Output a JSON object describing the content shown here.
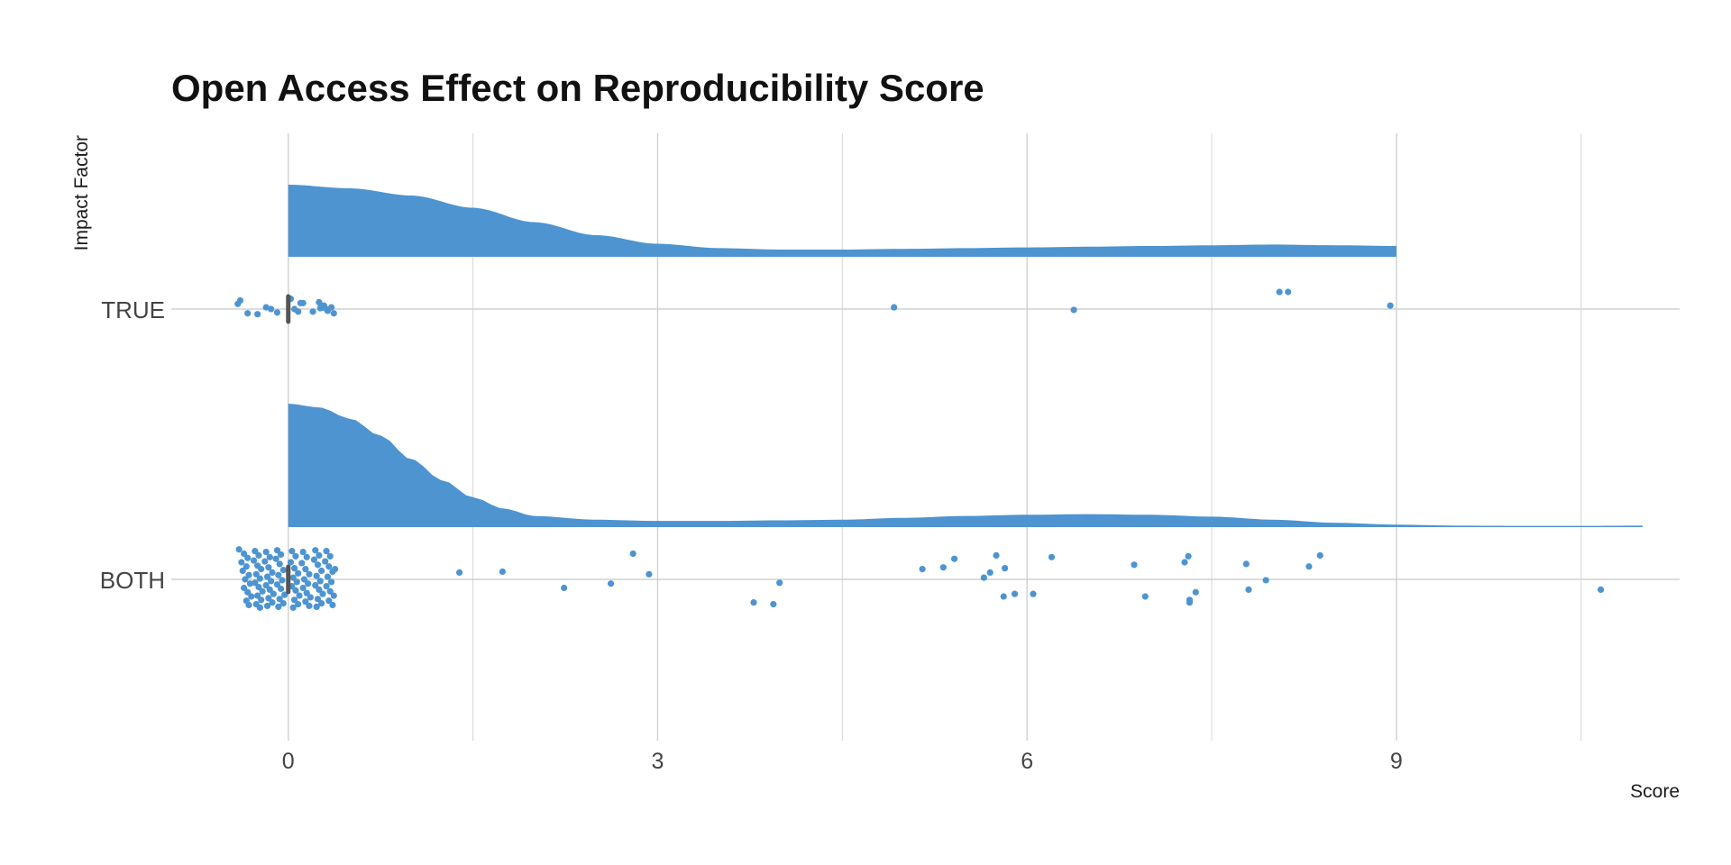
{
  "chart_data": {
    "type": "raincloud",
    "title": "Open Access Effect on Reproducibility Score",
    "xlabel": "Score",
    "ylabel": "Impact Factor",
    "xlim": [
      -0.95,
      11.3
    ],
    "x_ticks": [
      0,
      3,
      6,
      9
    ],
    "x_minor_ticks": [
      1.5,
      4.5,
      7.5,
      10.5
    ],
    "grid": true,
    "color": "#4d94d1",
    "median_color": "#555555",
    "categories": [
      "TRUE",
      "BOTH"
    ],
    "series": [
      {
        "category": "TRUE",
        "median": 0,
        "density_range": [
          0,
          9
        ],
        "density": [
          [
            0,
            1.0
          ],
          [
            0.5,
            0.95
          ],
          [
            1,
            0.85
          ],
          [
            1.5,
            0.68
          ],
          [
            2,
            0.48
          ],
          [
            2.5,
            0.3
          ],
          [
            3,
            0.18
          ],
          [
            3.5,
            0.12
          ],
          [
            4,
            0.1
          ],
          [
            4.5,
            0.1
          ],
          [
            5,
            0.11
          ],
          [
            5.5,
            0.12
          ],
          [
            6,
            0.13
          ],
          [
            6.5,
            0.14
          ],
          [
            7,
            0.15
          ],
          [
            7.5,
            0.16
          ],
          [
            8,
            0.17
          ],
          [
            8.5,
            0.16
          ],
          [
            9,
            0.15
          ]
        ],
        "points": [
          [
            -0.39,
            0.1
          ],
          [
            -0.41,
            0.06
          ],
          [
            -0.33,
            -0.05
          ],
          [
            -0.25,
            -0.06
          ],
          [
            -0.18,
            0.02
          ],
          [
            -0.14,
            0.0
          ],
          [
            -0.09,
            -0.04
          ],
          [
            0.02,
            0.12
          ],
          [
            0.05,
            0.0
          ],
          [
            0.08,
            -0.03
          ],
          [
            0.1,
            0.07
          ],
          [
            0.12,
            0.07
          ],
          [
            0.2,
            -0.03
          ],
          [
            0.26,
            0.01
          ],
          [
            0.27,
            0.04
          ],
          [
            0.29,
            0.04
          ],
          [
            0.3,
            0.01
          ],
          [
            0.32,
            -0.02
          ],
          [
            0.35,
            0.02
          ],
          [
            0.37,
            -0.05
          ],
          [
            0.25,
            0.08
          ],
          [
            4.92,
            0.02
          ],
          [
            6.38,
            -0.01
          ],
          [
            8.05,
            0.2
          ],
          [
            8.12,
            0.2
          ],
          [
            8.95,
            0.04
          ]
        ]
      },
      {
        "category": "BOTH",
        "median": 0,
        "density_range": [
          0,
          11
        ],
        "density": [
          [
            0,
            1.0
          ],
          [
            0.25,
            0.97
          ],
          [
            0.5,
            0.88
          ],
          [
            0.75,
            0.74
          ],
          [
            1,
            0.55
          ],
          [
            1.25,
            0.38
          ],
          [
            1.5,
            0.24
          ],
          [
            1.75,
            0.15
          ],
          [
            2,
            0.09
          ],
          [
            2.5,
            0.06
          ],
          [
            3,
            0.05
          ],
          [
            3.5,
            0.05
          ],
          [
            4,
            0.055
          ],
          [
            4.5,
            0.06
          ],
          [
            5,
            0.075
          ],
          [
            5.5,
            0.09
          ],
          [
            6,
            0.1
          ],
          [
            6.5,
            0.105
          ],
          [
            7,
            0.1
          ],
          [
            7.5,
            0.085
          ],
          [
            8,
            0.06
          ],
          [
            8.5,
            0.035
          ],
          [
            9,
            0.02
          ],
          [
            9.5,
            0.012
          ],
          [
            10,
            0.01
          ],
          [
            10.5,
            0.01
          ],
          [
            11,
            0.012
          ]
        ],
        "points": [
          [
            -0.4,
            0.35
          ],
          [
            -0.36,
            0.3
          ],
          [
            -0.33,
            0.25
          ],
          [
            -0.38,
            0.2
          ],
          [
            -0.34,
            0.15
          ],
          [
            -0.37,
            0.1
          ],
          [
            -0.32,
            0.05
          ],
          [
            -0.35,
            0.0
          ],
          [
            -0.31,
            -0.05
          ],
          [
            -0.36,
            -0.1
          ],
          [
            -0.33,
            -0.15
          ],
          [
            -0.3,
            -0.2
          ],
          [
            -0.34,
            -0.25
          ],
          [
            -0.32,
            -0.3
          ],
          [
            -0.27,
            0.33
          ],
          [
            -0.24,
            0.28
          ],
          [
            -0.28,
            0.22
          ],
          [
            -0.25,
            0.16
          ],
          [
            -0.22,
            0.12
          ],
          [
            -0.26,
            0.06
          ],
          [
            -0.23,
            0.01
          ],
          [
            -0.27,
            -0.04
          ],
          [
            -0.24,
            -0.09
          ],
          [
            -0.21,
            -0.14
          ],
          [
            -0.25,
            -0.19
          ],
          [
            -0.22,
            -0.24
          ],
          [
            -0.26,
            -0.29
          ],
          [
            -0.23,
            -0.33
          ],
          [
            -0.18,
            0.32
          ],
          [
            -0.15,
            0.26
          ],
          [
            -0.19,
            0.21
          ],
          [
            -0.16,
            0.14
          ],
          [
            -0.13,
            0.08
          ],
          [
            -0.17,
            0.03
          ],
          [
            -0.14,
            -0.02
          ],
          [
            -0.18,
            -0.07
          ],
          [
            -0.15,
            -0.12
          ],
          [
            -0.12,
            -0.17
          ],
          [
            -0.16,
            -0.22
          ],
          [
            -0.13,
            -0.27
          ],
          [
            -0.17,
            -0.31
          ],
          [
            -0.09,
            0.34
          ],
          [
            -0.06,
            0.29
          ],
          [
            -0.1,
            0.24
          ],
          [
            -0.07,
            0.18
          ],
          [
            -0.04,
            0.11
          ],
          [
            -0.08,
            0.05
          ],
          [
            -0.05,
            -0.01
          ],
          [
            -0.09,
            -0.06
          ],
          [
            -0.06,
            -0.11
          ],
          [
            -0.03,
            -0.18
          ],
          [
            -0.07,
            -0.23
          ],
          [
            -0.04,
            -0.28
          ],
          [
            -0.08,
            -0.32
          ],
          [
            0.03,
            0.33
          ],
          [
            0.06,
            0.27
          ],
          [
            0.02,
            0.2
          ],
          [
            0.05,
            0.13
          ],
          [
            0.08,
            0.07
          ],
          [
            0.04,
            0.02
          ],
          [
            0.07,
            -0.03
          ],
          [
            0.03,
            -0.08
          ],
          [
            0.06,
            -0.13
          ],
          [
            0.09,
            -0.19
          ],
          [
            0.05,
            -0.24
          ],
          [
            0.08,
            -0.29
          ],
          [
            0.04,
            -0.33
          ],
          [
            0.12,
            0.32
          ],
          [
            0.15,
            0.26
          ],
          [
            0.11,
            0.19
          ],
          [
            0.14,
            0.12
          ],
          [
            0.17,
            0.06
          ],
          [
            0.13,
            0.0
          ],
          [
            0.16,
            -0.05
          ],
          [
            0.12,
            -0.1
          ],
          [
            0.15,
            -0.16
          ],
          [
            0.18,
            -0.21
          ],
          [
            0.14,
            -0.26
          ],
          [
            0.17,
            -0.31
          ],
          [
            0.22,
            0.34
          ],
          [
            0.25,
            0.28
          ],
          [
            0.21,
            0.23
          ],
          [
            0.24,
            0.17
          ],
          [
            0.27,
            0.1
          ],
          [
            0.23,
            0.04
          ],
          [
            0.26,
            -0.02
          ],
          [
            0.22,
            -0.07
          ],
          [
            0.25,
            -0.12
          ],
          [
            0.28,
            -0.17
          ],
          [
            0.24,
            -0.23
          ],
          [
            0.27,
            -0.28
          ],
          [
            0.23,
            -0.32
          ],
          [
            0.31,
            0.33
          ],
          [
            0.34,
            0.27
          ],
          [
            0.3,
            0.21
          ],
          [
            0.33,
            0.15
          ],
          [
            0.36,
            0.09
          ],
          [
            0.32,
            0.03
          ],
          [
            0.35,
            -0.03
          ],
          [
            0.31,
            -0.08
          ],
          [
            0.34,
            -0.14
          ],
          [
            0.37,
            -0.19
          ],
          [
            0.33,
            -0.25
          ],
          [
            0.36,
            -0.3
          ],
          [
            0.38,
            0.12
          ],
          [
            1.39,
            0.08
          ],
          [
            1.74,
            0.09
          ],
          [
            2.24,
            -0.1
          ],
          [
            2.62,
            -0.05
          ],
          [
            2.8,
            0.3
          ],
          [
            2.93,
            0.06
          ],
          [
            3.78,
            -0.27
          ],
          [
            3.94,
            -0.29
          ],
          [
            3.99,
            -0.04
          ],
          [
            5.15,
            0.12
          ],
          [
            5.32,
            0.14
          ],
          [
            5.41,
            0.24
          ],
          [
            5.65,
            0.02
          ],
          [
            5.7,
            0.08
          ],
          [
            5.75,
            0.28
          ],
          [
            5.81,
            -0.2
          ],
          [
            5.82,
            0.13
          ],
          [
            5.9,
            -0.17
          ],
          [
            6.05,
            -0.17
          ],
          [
            6.2,
            0.26
          ],
          [
            6.87,
            0.17
          ],
          [
            6.96,
            -0.2
          ],
          [
            7.28,
            0.2
          ],
          [
            7.31,
            0.27
          ],
          [
            7.32,
            -0.27
          ],
          [
            7.32,
            -0.24
          ],
          [
            7.37,
            -0.15
          ],
          [
            7.78,
            0.18
          ],
          [
            7.8,
            -0.12
          ],
          [
            7.94,
            -0.01
          ],
          [
            8.29,
            0.15
          ],
          [
            8.38,
            0.28
          ],
          [
            10.66,
            -0.12
          ]
        ]
      }
    ]
  }
}
